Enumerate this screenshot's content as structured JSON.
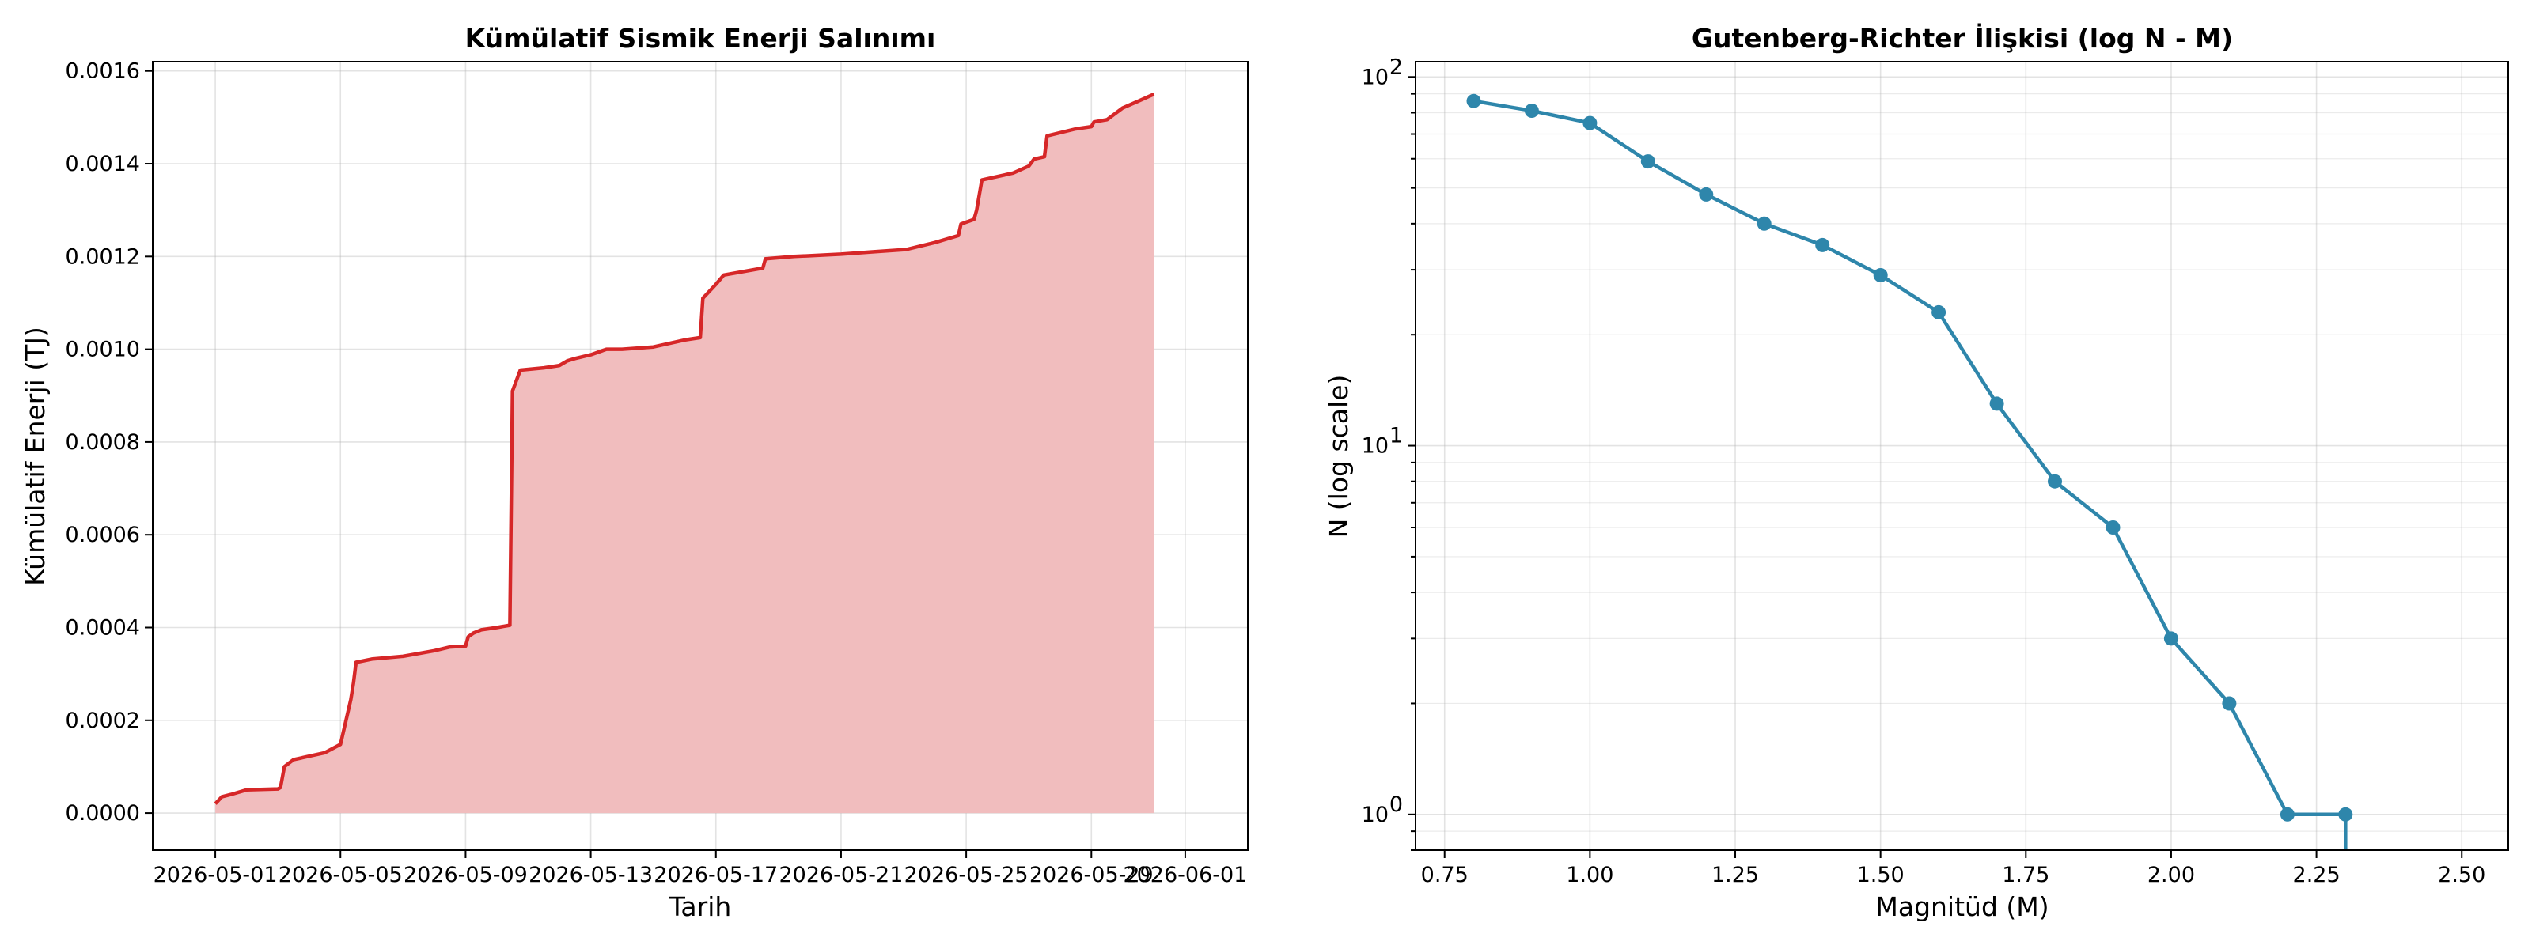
{
  "chart_data": [
    {
      "type": "area",
      "title": "Kümülatif Sismik Enerji Salınımı",
      "xlabel": "Tarih",
      "ylabel": "Kümülatif Enerji (TJ)",
      "xlim": [
        "2026-04-29",
        "2026-06-03"
      ],
      "ylim": [
        -8e-05,
        0.00162
      ],
      "grid": true,
      "line_color": "#d62728",
      "fill_color": "#f1bdbe",
      "x_ticks": [
        "2026-05-01",
        "2026-05-05",
        "2026-05-09",
        "2026-05-13",
        "2026-05-17",
        "2026-05-21",
        "2026-05-25",
        "2026-05-29",
        "2026-06-01"
      ],
      "y_ticks": [
        "0.0000",
        "0.0002",
        "0.0004",
        "0.0006",
        "0.0008",
        "0.0010",
        "0.0012",
        "0.0014",
        "0.0016"
      ],
      "series": [
        {
          "x": [
            "2026-05-01 00:00",
            "2026-05-01 05:00",
            "2026-05-01 12:00",
            "2026-05-02 00:00",
            "2026-05-03 00:00",
            "2026-05-03 02:00",
            "2026-05-03 05:00",
            "2026-05-03 12:00",
            "2026-05-04 12:00",
            "2026-05-05 00:00",
            "2026-05-05 08:00",
            "2026-05-05 10:00",
            "2026-05-05 12:00",
            "2026-05-06 00:00",
            "2026-05-07 00:00",
            "2026-05-08 00:00",
            "2026-05-08 12:00",
            "2026-05-09 00:00",
            "2026-05-09 02:00",
            "2026-05-09 06:00",
            "2026-05-09 12:00",
            "2026-05-10 00:00",
            "2026-05-10 10:00",
            "2026-05-10 12:00",
            "2026-05-10 18:00",
            "2026-05-11 12:00",
            "2026-05-12 00:00",
            "2026-05-12 06:00",
            "2026-05-12 12:00",
            "2026-05-13 00:00",
            "2026-05-13 12:00",
            "2026-05-14 00:00",
            "2026-05-15 00:00",
            "2026-05-16 00:00",
            "2026-05-16 12:00",
            "2026-05-16 14:00",
            "2026-05-17 00:00",
            "2026-05-17 06:00",
            "2026-05-18 12:00",
            "2026-05-18 14:00",
            "2026-05-19 12:00",
            "2026-05-21 00:00",
            "2026-05-22 00:00",
            "2026-05-23 02:00",
            "2026-05-24 00:00",
            "2026-05-24 18:00",
            "2026-05-24 20:00",
            "2026-05-25 06:00",
            "2026-05-25 08:00",
            "2026-05-25 12:00",
            "2026-05-26 12:00",
            "2026-05-27 00:00",
            "2026-05-27 04:00",
            "2026-05-27 12:00",
            "2026-05-27 14:00",
            "2026-05-28 12:00",
            "2026-05-29 00:00",
            "2026-05-29 02:00",
            "2026-05-29 12:00",
            "2026-05-30 00:00",
            "2026-05-30 12:00",
            "2026-05-31 00:00"
          ],
          "y": [
            2e-05,
            3.5e-05,
            4e-05,
            5e-05,
            5.2e-05,
            5.5e-05,
            0.0001,
            0.000115,
            0.00013,
            0.000148,
            0.000245,
            0.00028,
            0.000325,
            0.000332,
            0.000338,
            0.00035,
            0.000358,
            0.00036,
            0.00038,
            0.000388,
            0.000395,
            0.0004,
            0.000405,
            0.00091,
            0.000955,
            0.00096,
            0.000965,
            0.000975,
            0.00098,
            0.000988,
            0.001,
            0.001,
            0.001005,
            0.00102,
            0.001025,
            0.00111,
            0.00114,
            0.00116,
            0.001175,
            0.001195,
            0.0012,
            0.001205,
            0.00121,
            0.001215,
            0.00123,
            0.001245,
            0.00127,
            0.00128,
            0.0013,
            0.001365,
            0.00138,
            0.001395,
            0.00141,
            0.001415,
            0.00146,
            0.001475,
            0.00148,
            0.00149,
            0.001495,
            0.00152,
            0.001535,
            0.00155
          ]
        }
      ]
    },
    {
      "type": "line",
      "title": "Gutenberg-Richter İlişkisi (log N - M)",
      "xlabel": "Magnitüd (M)",
      "ylabel": "N (log scale)",
      "yscale": "log",
      "xlim": [
        0.7,
        2.58
      ],
      "ylim": [
        0.8,
        110
      ],
      "grid": true,
      "line_color": "#2e86ab",
      "x_ticks": [
        "0.75",
        "1.00",
        "1.25",
        "1.50",
        "1.75",
        "2.00",
        "2.25",
        "2.50"
      ],
      "y_tick_labels": [
        {
          "base": "10",
          "exp": "0"
        },
        {
          "base": "10",
          "exp": "1"
        },
        {
          "base": "10",
          "exp": "2"
        }
      ],
      "series": [
        {
          "x": [
            0.8,
            0.9,
            1.0,
            1.1,
            1.2,
            1.3,
            1.4,
            1.5,
            1.6,
            1.7,
            1.8,
            1.9,
            2.0,
            2.1,
            2.2,
            2.3
          ],
          "y": [
            86,
            81,
            75,
            59,
            48,
            40,
            35,
            29,
            23,
            13,
            8,
            6,
            3,
            2,
            1,
            1
          ]
        }
      ]
    }
  ]
}
